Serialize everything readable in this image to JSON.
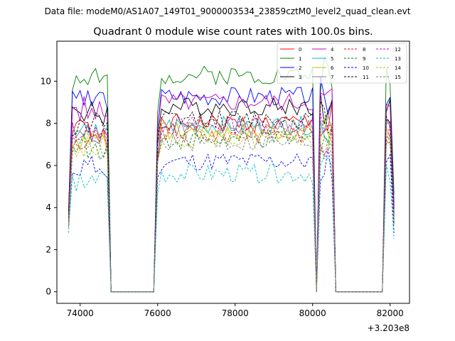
{
  "chart_data": {
    "type": "line",
    "suptitle": "Data file: modeM0/AS1A07_149T01_9000003534_23859cztM0_level2_quad_clean.evt",
    "title": "Quadrant 0 module wise count rates with 100.0s bins.",
    "xlabel": "",
    "ylabel": "",
    "x_offset_label": "+3.203e8",
    "xlim": [
      73400,
      82500
    ],
    "ylim": [
      -0.55,
      11.9
    ],
    "x_ticks": [
      74000,
      76000,
      78000,
      80000,
      82000
    ],
    "x_tick_labels": [
      "74000",
      "76000",
      "78000",
      "80000",
      "82000"
    ],
    "y_ticks": [
      0,
      2,
      4,
      6,
      8,
      10
    ],
    "y_tick_labels": [
      "0",
      "2",
      "4",
      "6",
      "8",
      "10"
    ],
    "legend_position": "upper-right",
    "segments": [
      {
        "start": 73700,
        "end": 74700
      },
      {
        "start": 76000,
        "end": 80000
      },
      {
        "start": 80200,
        "end": 80500
      },
      {
        "start": 81900,
        "end": 82100
      }
    ],
    "series": [
      {
        "name": "0",
        "color": "#ff0000",
        "style": "solid",
        "level": 8.0,
        "start": 3.6,
        "seed": 1
      },
      {
        "name": "1",
        "color": "#008000",
        "style": "solid",
        "level": 10.3,
        "start": 3.8,
        "seed": 2
      },
      {
        "name": "2",
        "color": "#0000ff",
        "style": "solid",
        "level": 9.3,
        "start": 3.6,
        "seed": 3
      },
      {
        "name": "3",
        "color": "#000000",
        "style": "solid",
        "level": 8.8,
        "start": 3.8,
        "seed": 4
      },
      {
        "name": "4",
        "color": "#bf00bf",
        "style": "solid",
        "level": 9.0,
        "start": 3.4,
        "seed": 5
      },
      {
        "name": "5",
        "color": "#00bfbf",
        "style": "solid",
        "level": 7.9,
        "start": 3.3,
        "seed": 6
      },
      {
        "name": "6",
        "color": "#bfbf00",
        "style": "solid",
        "level": 7.6,
        "start": 3.3,
        "seed": 7
      },
      {
        "name": "7",
        "color": "#808080",
        "style": "solid",
        "level": 7.8,
        "start": 3.4,
        "seed": 8
      },
      {
        "name": "8",
        "color": "#ff0000",
        "style": "dashed",
        "level": 7.5,
        "start": 3.2,
        "seed": 9
      },
      {
        "name": "9",
        "color": "#008000",
        "style": "dashed",
        "level": 7.2,
        "start": 3.1,
        "seed": 10
      },
      {
        "name": "10",
        "color": "#0000ff",
        "style": "dashed",
        "level": 6.2,
        "start": 3.0,
        "seed": 11
      },
      {
        "name": "11",
        "color": "#000000",
        "style": "dashed",
        "level": 8.2,
        "start": 3.5,
        "seed": 12
      },
      {
        "name": "12",
        "color": "#bf00bf",
        "style": "dashed",
        "level": 7.9,
        "start": 3.2,
        "seed": 13
      },
      {
        "name": "13",
        "color": "#00bfbf",
        "style": "dashed",
        "level": 5.6,
        "start": 2.8,
        "seed": 14
      },
      {
        "name": "14",
        "color": "#bfbf00",
        "style": "dashed",
        "level": 7.3,
        "start": 3.0,
        "seed": 15
      },
      {
        "name": "15",
        "color": "#808080",
        "style": "dashed",
        "level": 7.1,
        "start": 3.1,
        "seed": 16
      }
    ]
  }
}
